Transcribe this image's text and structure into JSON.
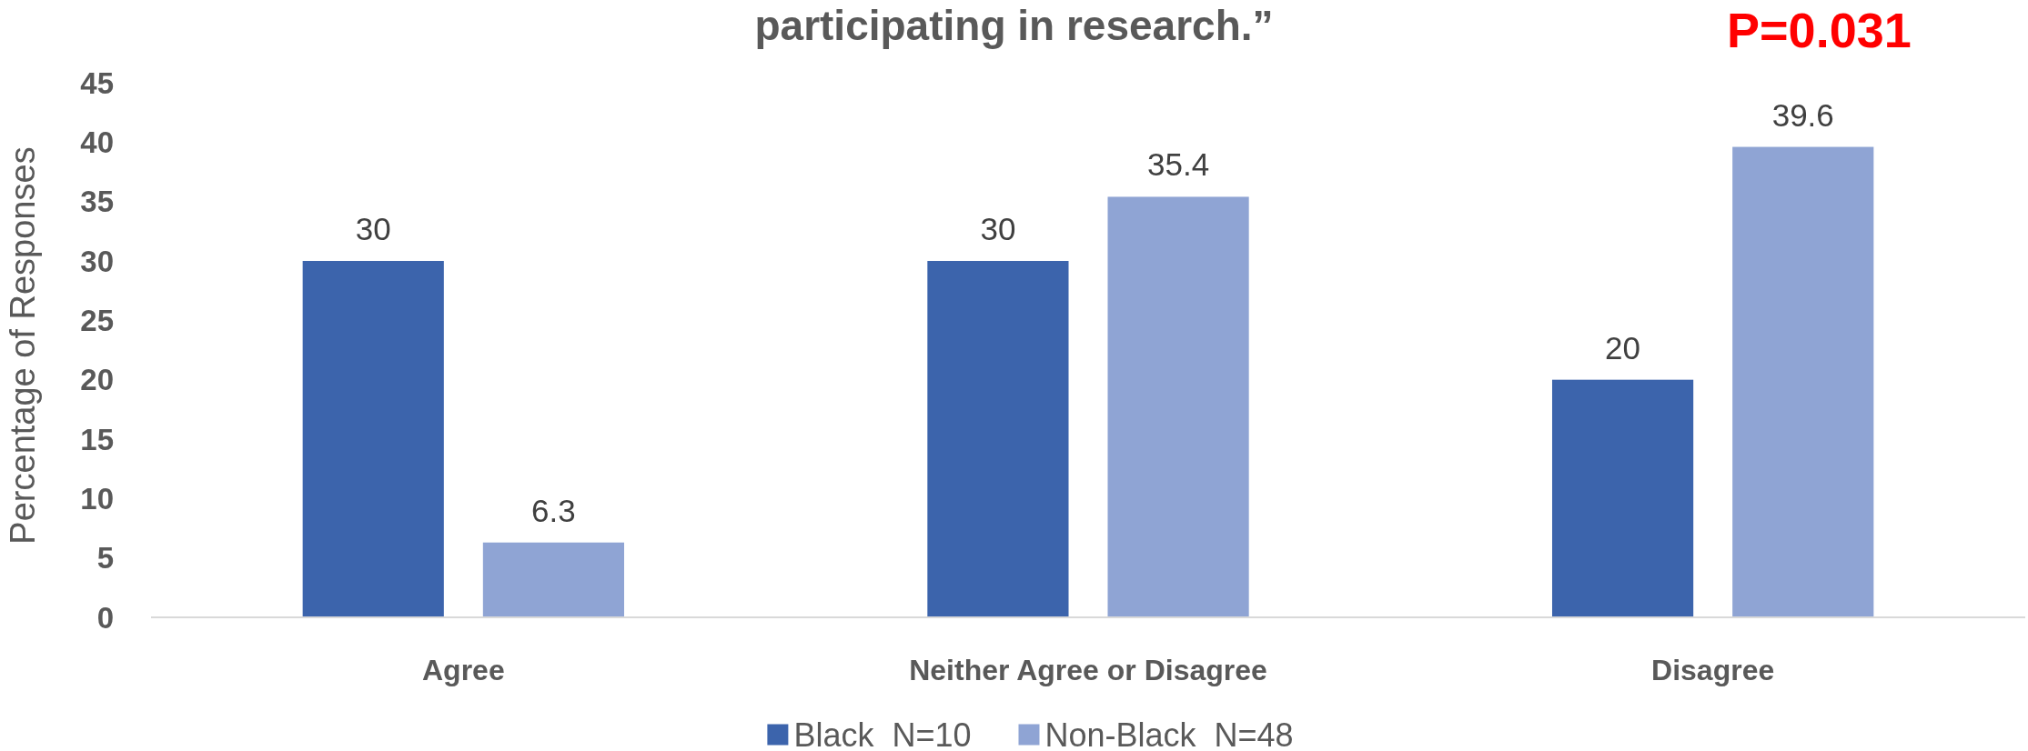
{
  "chart_data": {
    "type": "bar",
    "title": "participating in research.”",
    "ylabel": "Percentage of Responses",
    "categories": [
      "Agree",
      "Neither Agree or Disagree",
      "Disagree"
    ],
    "series": [
      {
        "name": "Black  N=10",
        "color": "#3c64ac",
        "values": [
          30,
          30,
          20
        ]
      },
      {
        "name": "Non-Black  N=48",
        "color": "#8fa4d4",
        "values": [
          6.3,
          35.4,
          39.6
        ]
      }
    ],
    "ylim": [
      0,
      45
    ],
    "yticks": [
      0,
      5,
      10,
      15,
      20,
      25,
      30,
      35,
      40,
      45
    ],
    "data_labels": true,
    "legend": "bottom",
    "annotations": [
      "P=0.031"
    ]
  }
}
